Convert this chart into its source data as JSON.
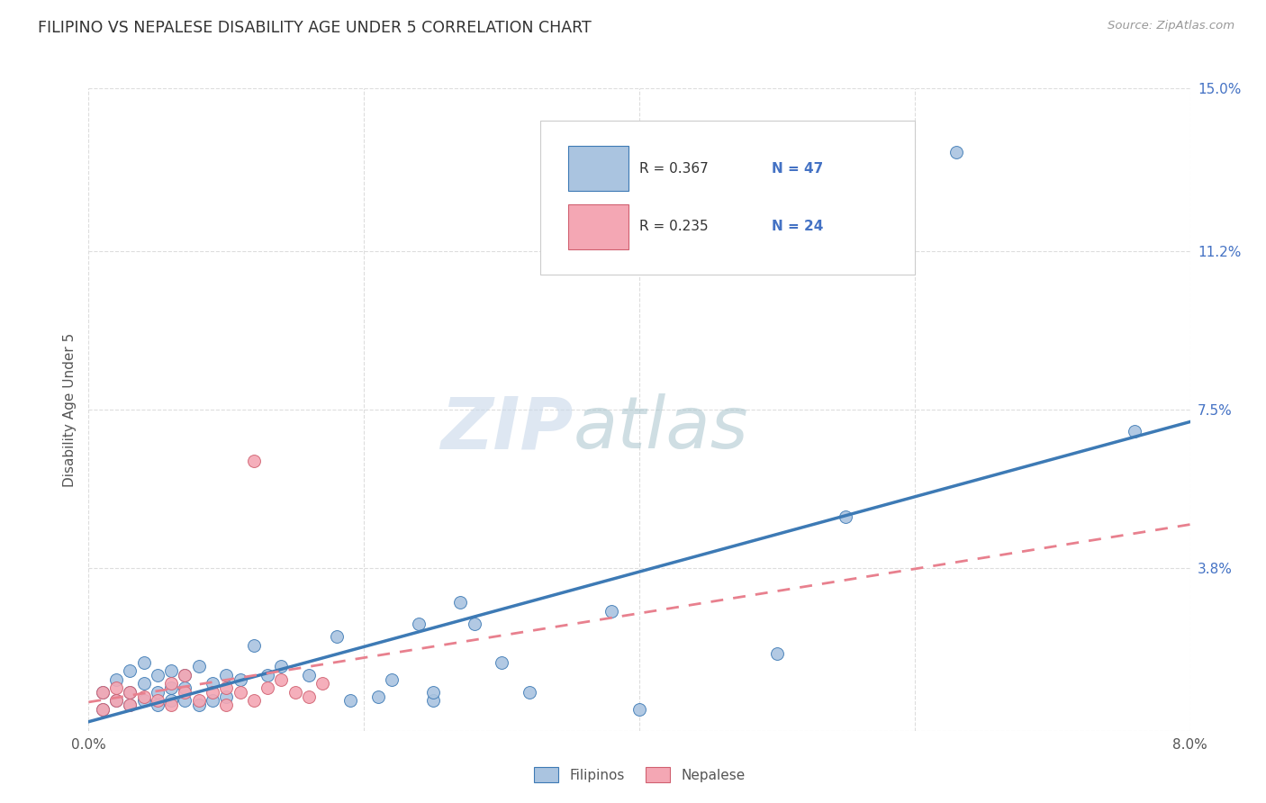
{
  "title": "FILIPINO VS NEPALESE DISABILITY AGE UNDER 5 CORRELATION CHART",
  "source": "Source: ZipAtlas.com",
  "ylabel": "Disability Age Under 5",
  "xmin": 0.0,
  "xmax": 0.08,
  "ymin": 0.0,
  "ymax": 0.15,
  "xticks": [
    0.0,
    0.02,
    0.04,
    0.06,
    0.08
  ],
  "xticklabels": [
    "0.0%",
    "",
    "",
    "",
    "8.0%"
  ],
  "ytick_positions": [
    0.0,
    0.038,
    0.075,
    0.112,
    0.15
  ],
  "ytick_labels": [
    "",
    "3.8%",
    "7.5%",
    "11.2%",
    "15.0%"
  ],
  "background_color": "#ffffff",
  "grid_color": "#dddddd",
  "filipino_color": "#aac4e0",
  "nepalese_color": "#f4a7b4",
  "filipino_line_color": "#3d7ab5",
  "nepalese_line_color": "#e8808e",
  "legend_R_filipino": "R = 0.367",
  "legend_N_filipino": "N = 47",
  "legend_R_nepalese": "R = 0.235",
  "legend_N_nepalese": "N = 24",
  "legend_label_filipino": "Filipinos",
  "legend_label_nepalese": "Nepalese",
  "filipino_x": [
    0.001,
    0.001,
    0.002,
    0.002,
    0.003,
    0.003,
    0.003,
    0.004,
    0.004,
    0.004,
    0.005,
    0.005,
    0.005,
    0.006,
    0.006,
    0.006,
    0.007,
    0.007,
    0.007,
    0.008,
    0.008,
    0.009,
    0.009,
    0.01,
    0.01,
    0.011,
    0.012,
    0.013,
    0.014,
    0.016,
    0.018,
    0.019,
    0.021,
    0.022,
    0.024,
    0.025,
    0.025,
    0.027,
    0.028,
    0.03,
    0.032,
    0.038,
    0.04,
    0.05,
    0.055,
    0.063,
    0.076
  ],
  "filipino_y": [
    0.005,
    0.009,
    0.007,
    0.012,
    0.006,
    0.009,
    0.014,
    0.007,
    0.011,
    0.016,
    0.006,
    0.009,
    0.013,
    0.007,
    0.01,
    0.014,
    0.007,
    0.01,
    0.013,
    0.006,
    0.015,
    0.007,
    0.011,
    0.008,
    0.013,
    0.012,
    0.02,
    0.013,
    0.015,
    0.013,
    0.022,
    0.007,
    0.008,
    0.012,
    0.025,
    0.007,
    0.009,
    0.03,
    0.025,
    0.016,
    0.009,
    0.028,
    0.005,
    0.018,
    0.05,
    0.135,
    0.07
  ],
  "nepalese_x": [
    0.001,
    0.001,
    0.002,
    0.002,
    0.003,
    0.003,
    0.004,
    0.005,
    0.006,
    0.006,
    0.007,
    0.007,
    0.008,
    0.009,
    0.01,
    0.01,
    0.011,
    0.012,
    0.013,
    0.014,
    0.015,
    0.016,
    0.017,
    0.012
  ],
  "nepalese_y": [
    0.005,
    0.009,
    0.007,
    0.01,
    0.006,
    0.009,
    0.008,
    0.007,
    0.006,
    0.011,
    0.009,
    0.013,
    0.007,
    0.009,
    0.006,
    0.01,
    0.009,
    0.007,
    0.01,
    0.012,
    0.009,
    0.008,
    0.011,
    0.063
  ]
}
